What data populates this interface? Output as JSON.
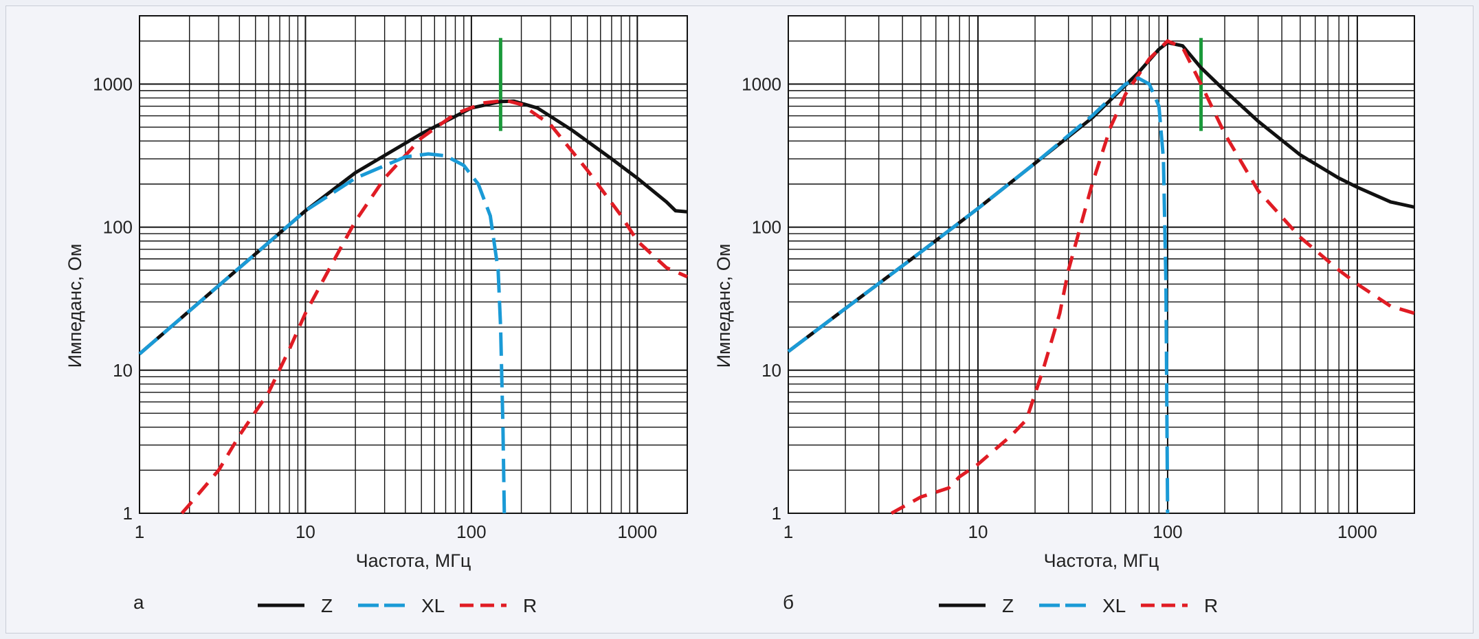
{
  "chart_data": [
    {
      "type": "line",
      "panel_label": "а",
      "xscale": "log",
      "yscale": "log",
      "xlim": [
        1,
        2000
      ],
      "ylim": [
        1,
        3000
      ],
      "xticks": [
        1,
        10,
        100,
        1000
      ],
      "yticks": [
        1,
        10,
        100,
        1000
      ],
      "xlabel": "Частота, МГц",
      "ylabel": "Импеданс, Ом",
      "grid": true,
      "legend_position": "bottom",
      "marker_line": {
        "x": 150,
        "y_range": [
          470,
          2100
        ],
        "color": "#1a9a3a"
      },
      "series": [
        {
          "name": "Z",
          "color": "#111111",
          "style": "solid",
          "points": [
            [
              1,
              13
            ],
            [
              2,
              26
            ],
            [
              5,
              65
            ],
            [
              10,
              130
            ],
            [
              20,
              240
            ],
            [
              50,
              450
            ],
            [
              100,
              680
            ],
            [
              150,
              755
            ],
            [
              180,
              760
            ],
            [
              250,
              680
            ],
            [
              400,
              480
            ],
            [
              700,
              300
            ],
            [
              1000,
              220
            ],
            [
              1500,
              150
            ],
            [
              1700,
              130
            ],
            [
              2000,
              128
            ]
          ]
        },
        {
          "name": "XL",
          "color": "#1a9ad6",
          "style": "long-dash",
          "points": [
            [
              1,
              13
            ],
            [
              2,
              26
            ],
            [
              5,
              65
            ],
            [
              10,
              130
            ],
            [
              20,
              220
            ],
            [
              40,
              310
            ],
            [
              55,
              325
            ],
            [
              70,
              315
            ],
            [
              90,
              270
            ],
            [
              110,
              200
            ],
            [
              130,
              120
            ],
            [
              145,
              50
            ],
            [
              150,
              20
            ],
            [
              155,
              4
            ],
            [
              158,
              1
            ]
          ]
        },
        {
          "name": "R",
          "color": "#e01c24",
          "style": "dash",
          "points": [
            [
              1.8,
              1
            ],
            [
              2,
              1.15
            ],
            [
              3,
              2
            ],
            [
              4,
              3.5
            ],
            [
              6,
              7
            ],
            [
              8,
              14
            ],
            [
              10,
              25
            ],
            [
              15,
              60
            ],
            [
              20,
              110
            ],
            [
              30,
              220
            ],
            [
              50,
              420
            ],
            [
              80,
              620
            ],
            [
              120,
              740
            ],
            [
              160,
              770
            ],
            [
              200,
              720
            ],
            [
              300,
              520
            ],
            [
              500,
              250
            ],
            [
              800,
              120
            ],
            [
              1000,
              80
            ],
            [
              1500,
              52
            ],
            [
              2000,
              45
            ]
          ]
        }
      ]
    },
    {
      "type": "line",
      "panel_label": "б",
      "xscale": "log",
      "yscale": "log",
      "xlim": [
        1,
        2000
      ],
      "ylim": [
        1,
        3000
      ],
      "xticks": [
        1,
        10,
        100,
        1000
      ],
      "yticks": [
        1,
        10,
        100,
        1000
      ],
      "xlabel": "Частота, МГц",
      "ylabel": "Импеданс, Ом",
      "grid": true,
      "legend_position": "bottom",
      "marker_line": {
        "x": 150,
        "y_range": [
          470,
          2100
        ],
        "color": "#1a9a3a"
      },
      "series": [
        {
          "name": "Z",
          "color": "#111111",
          "style": "solid",
          "points": [
            [
              1,
              13.5
            ],
            [
              2,
              27
            ],
            [
              5,
              67
            ],
            [
              10,
              135
            ],
            [
              20,
              280
            ],
            [
              40,
              580
            ],
            [
              70,
              1200
            ],
            [
              90,
              1750
            ],
            [
              100,
              1950
            ],
            [
              120,
              1850
            ],
            [
              150,
              1300
            ],
            [
              200,
              900
            ],
            [
              300,
              550
            ],
            [
              500,
              320
            ],
            [
              800,
              220
            ],
            [
              1000,
              190
            ],
            [
              1500,
              150
            ],
            [
              2000,
              138
            ]
          ]
        },
        {
          "name": "XL",
          "color": "#1a9ad6",
          "style": "long-dash",
          "points": [
            [
              1,
              13.5
            ],
            [
              2,
              27
            ],
            [
              5,
              67
            ],
            [
              10,
              135
            ],
            [
              20,
              280
            ],
            [
              40,
              600
            ],
            [
              60,
              1000
            ],
            [
              70,
              1100
            ],
            [
              80,
              1000
            ],
            [
              90,
              700
            ],
            [
              95,
              300
            ],
            [
              98,
              40
            ],
            [
              100,
              1
            ]
          ]
        },
        {
          "name": "R",
          "color": "#e01c24",
          "style": "dash",
          "points": [
            [
              3.5,
              1
            ],
            [
              5,
              1.3
            ],
            [
              7,
              1.5
            ],
            [
              8,
              1.8
            ],
            [
              10,
              2.2
            ],
            [
              15,
              3.5
            ],
            [
              18,
              4.5
            ],
            [
              22,
              10
            ],
            [
              27,
              25
            ],
            [
              30,
              50
            ],
            [
              40,
              200
            ],
            [
              50,
              500
            ],
            [
              60,
              850
            ],
            [
              80,
              1500
            ],
            [
              100,
              2000
            ],
            [
              120,
              1800
            ],
            [
              150,
              1000
            ],
            [
              200,
              450
            ],
            [
              300,
              180
            ],
            [
              500,
              85
            ],
            [
              800,
              50
            ],
            [
              1000,
              40
            ],
            [
              1500,
              28
            ],
            [
              2000,
              25
            ]
          ]
        }
      ]
    }
  ],
  "legend": [
    {
      "name": "Z",
      "color": "#111111",
      "style": "solid"
    },
    {
      "name": "XL",
      "color": "#1a9ad6",
      "style": "long-dash"
    },
    {
      "name": "R",
      "color": "#e01c24",
      "style": "dash"
    }
  ]
}
